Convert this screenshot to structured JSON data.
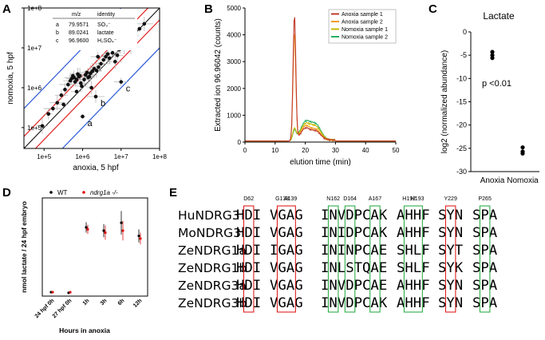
{
  "panel_letters": [
    "A",
    "B",
    "C",
    "D",
    "E"
  ],
  "chart_data": [
    {
      "panel": "A",
      "type": "scatter",
      "xlabel": "anoxia, 5 hpf",
      "ylabel": "nomoxia, 5 hpf",
      "log_scale": true,
      "xlim": [
        30000,
        100000000
      ],
      "ylim": [
        30000,
        100000000
      ],
      "xticks": [
        "1e+5",
        "1e+6",
        "1e+7",
        "1e+8"
      ],
      "yticks": [
        "1e+5",
        "1e+6",
        "1e+7",
        "1e+8"
      ],
      "table_header": [
        "m/z",
        "identity"
      ],
      "table_rows": [
        {
          "id": "a",
          "mz": "79.9571",
          "identity": "SO₃⁻"
        },
        {
          "id": "b",
          "mz": "89.0241",
          "identity": "lactate"
        },
        {
          "id": "c",
          "mz": "96.9600",
          "identity": "H₂SO₄⁻"
        }
      ],
      "points": [
        {
          "x": 1000000,
          "y": 190000,
          "label": "a"
        },
        {
          "x": 2200000,
          "y": 600000,
          "label": "b"
        },
        {
          "x": 10000000,
          "y": 1400000,
          "label": "c"
        },
        {
          "x": 90000,
          "y": 110000
        },
        {
          "x": 130000,
          "y": 220000
        },
        {
          "x": 170000,
          "y": 300000
        },
        {
          "x": 220000,
          "y": 420000
        },
        {
          "x": 280000,
          "y": 650000
        },
        {
          "x": 320000,
          "y": 380000
        },
        {
          "x": 350000,
          "y": 900000
        },
        {
          "x": 420000,
          "y": 1200000
        },
        {
          "x": 480000,
          "y": 1500000
        },
        {
          "x": 520000,
          "y": 1700000
        },
        {
          "x": 560000,
          "y": 2000000
        },
        {
          "x": 600000,
          "y": 1800000
        },
        {
          "x": 640000,
          "y": 1400000
        },
        {
          "x": 700000,
          "y": 1600000
        },
        {
          "x": 750000,
          "y": 2200000
        },
        {
          "x": 800000,
          "y": 1900000
        },
        {
          "x": 850000,
          "y": 2000000
        },
        {
          "x": 900000,
          "y": 1300000
        },
        {
          "x": 950000,
          "y": 1100000
        },
        {
          "x": 1100000,
          "y": 1600000
        },
        {
          "x": 1200000,
          "y": 2100000
        },
        {
          "x": 1300000,
          "y": 2400000
        },
        {
          "x": 1400000,
          "y": 1800000
        },
        {
          "x": 1500000,
          "y": 1900000
        },
        {
          "x": 1600000,
          "y": 2300000
        },
        {
          "x": 1800000,
          "y": 2600000
        },
        {
          "x": 2000000,
          "y": 3000000
        },
        {
          "x": 2300000,
          "y": 2700000
        },
        {
          "x": 2600000,
          "y": 3300000
        },
        {
          "x": 3000000,
          "y": 4000000
        },
        {
          "x": 3500000,
          "y": 5000000
        },
        {
          "x": 4000000,
          "y": 6000000
        },
        {
          "x": 4500000,
          "y": 7000000
        },
        {
          "x": 5000000,
          "y": 5500000
        },
        {
          "x": 6000000,
          "y": 7500000
        },
        {
          "x": 7000000,
          "y": 4500000
        },
        {
          "x": 8000000,
          "y": 6500000
        },
        {
          "x": 9000000,
          "y": 9000000
        },
        {
          "x": 12000000,
          "y": 10000000
        },
        {
          "x": 15000000,
          "y": 13000000
        },
        {
          "x": 18000000,
          "y": 11000000
        },
        {
          "x": 22000000,
          "y": 20000000
        },
        {
          "x": 30000000,
          "y": 30000000
        },
        {
          "x": 40000000,
          "y": 40000000
        },
        {
          "x": 2500000,
          "y": 6000000
        },
        {
          "x": 700000,
          "y": 800000
        },
        {
          "x": 1700000,
          "y": 1000000
        }
      ]
    },
    {
      "panel": "B",
      "type": "line",
      "xlabel": "elution time (min)",
      "ylabel": "Extracted ion 96.96042 (counts)",
      "xlim": [
        0,
        50
      ],
      "ylim": [
        0,
        5000
      ],
      "xticks": [
        "0",
        "10",
        "20",
        "30",
        "40",
        "50"
      ],
      "yticks": [
        "0",
        "1000",
        "2000",
        "3000",
        "4000",
        "5000"
      ],
      "series": [
        {
          "name": "Anoxia sample 1",
          "color": "#c0392b",
          "peaks": [
            [
              16.4,
              4700,
              0.45
            ],
            [
              20,
              420,
              1.5
            ],
            [
              23.5,
              320,
              1.6
            ]
          ]
        },
        {
          "name": "Anoxia sample 2",
          "color": "#f39c12",
          "peaks": [
            [
              16.4,
              4050,
              0.45
            ],
            [
              20,
              500,
              1.5
            ],
            [
              23.5,
              380,
              1.6
            ]
          ]
        },
        {
          "name": "Nomoxia sample 1",
          "color": "#c9b800",
          "peaks": [
            [
              16.4,
              450,
              0.55
            ],
            [
              20,
              560,
              1.6
            ],
            [
              23.5,
              480,
              1.7
            ]
          ]
        },
        {
          "name": "Nomoxia sample 2",
          "color": "#27ae60",
          "peaks": [
            [
              16.4,
              380,
              0.55
            ],
            [
              20,
              640,
              1.6
            ],
            [
              23.5,
              560,
              1.7
            ]
          ]
        }
      ]
    },
    {
      "panel": "C",
      "type": "scatter",
      "title": "Lactate",
      "ylabel": "log2 (normalized abundance)",
      "categories": [
        "Anoxia",
        "Nomoxia"
      ],
      "ylim": [
        -30,
        0
      ],
      "yticks": [
        "0",
        "-5",
        "-10",
        "-15",
        "-20",
        "-25",
        "-30"
      ],
      "values": [
        [
          -4.3,
          -5.0,
          -5.6
        ],
        [
          -24.8,
          -25.7,
          -26.1
        ]
      ],
      "annotation": "p <0.01"
    },
    {
      "panel": "D",
      "type": "scatter",
      "ylabel": "nmol lactate / 24 hpf embryo",
      "xlabel": "Hours in anoxia",
      "categories": [
        "24 hpf 0h",
        "27 hpf 0h",
        "1h",
        "3h",
        "6h",
        "12h"
      ],
      "ylim": [
        0,
        150
      ],
      "series": [
        {
          "name": "WT",
          "color": "#000000",
          "values": [
            6,
            5,
            105,
            100,
            112,
            92
          ],
          "errors": [
            1,
            1,
            8,
            10,
            18,
            10
          ]
        },
        {
          "name": "ndrg1a -/-",
          "color": "#e01010",
          "values": [
            6,
            6,
            102,
            97,
            100,
            88
          ],
          "errors": [
            1,
            1,
            7,
            11,
            15,
            9
          ]
        }
      ]
    },
    {
      "panel": "E",
      "type": "table",
      "header_residues": [
        "D62",
        "G138",
        "A139",
        "N162",
        "D164",
        "A167",
        "H192",
        "H193",
        "Y229",
        "P265"
      ],
      "rows": [
        {
          "name": "HuNDRG3",
          "blocks": [
            "HDI",
            "VGAG",
            "INVDPCAK",
            "AHHF",
            "SYN",
            "SPA"
          ]
        },
        {
          "name": "MoNDRG3",
          "blocks": [
            "HDI",
            "VGAG",
            "INIDPCAK",
            "AHHF",
            "SYN",
            "SPA"
          ]
        },
        {
          "name": "ZeNDRG1a",
          "blocks": [
            "HDI",
            "IGAG",
            "ININPCAE",
            "SHLF",
            "SYT",
            "SPA"
          ]
        },
        {
          "name": "ZeNDRG1b",
          "blocks": [
            "HDI",
            "VGAG",
            "INLSTQAE",
            "SHLF",
            "SYK",
            "SPA"
          ]
        },
        {
          "name": "ZeNDRG3a",
          "blocks": [
            "HDI",
            "VGAG",
            "INVDPCAE",
            "AHHF",
            "SYN",
            "SPA"
          ]
        },
        {
          "name": "ZeNDRG3b",
          "blocks": [
            "HDI",
            "VGAG",
            "INVDPCAK",
            "AHHF",
            "SYN",
            "SPA"
          ]
        }
      ]
    }
  ]
}
